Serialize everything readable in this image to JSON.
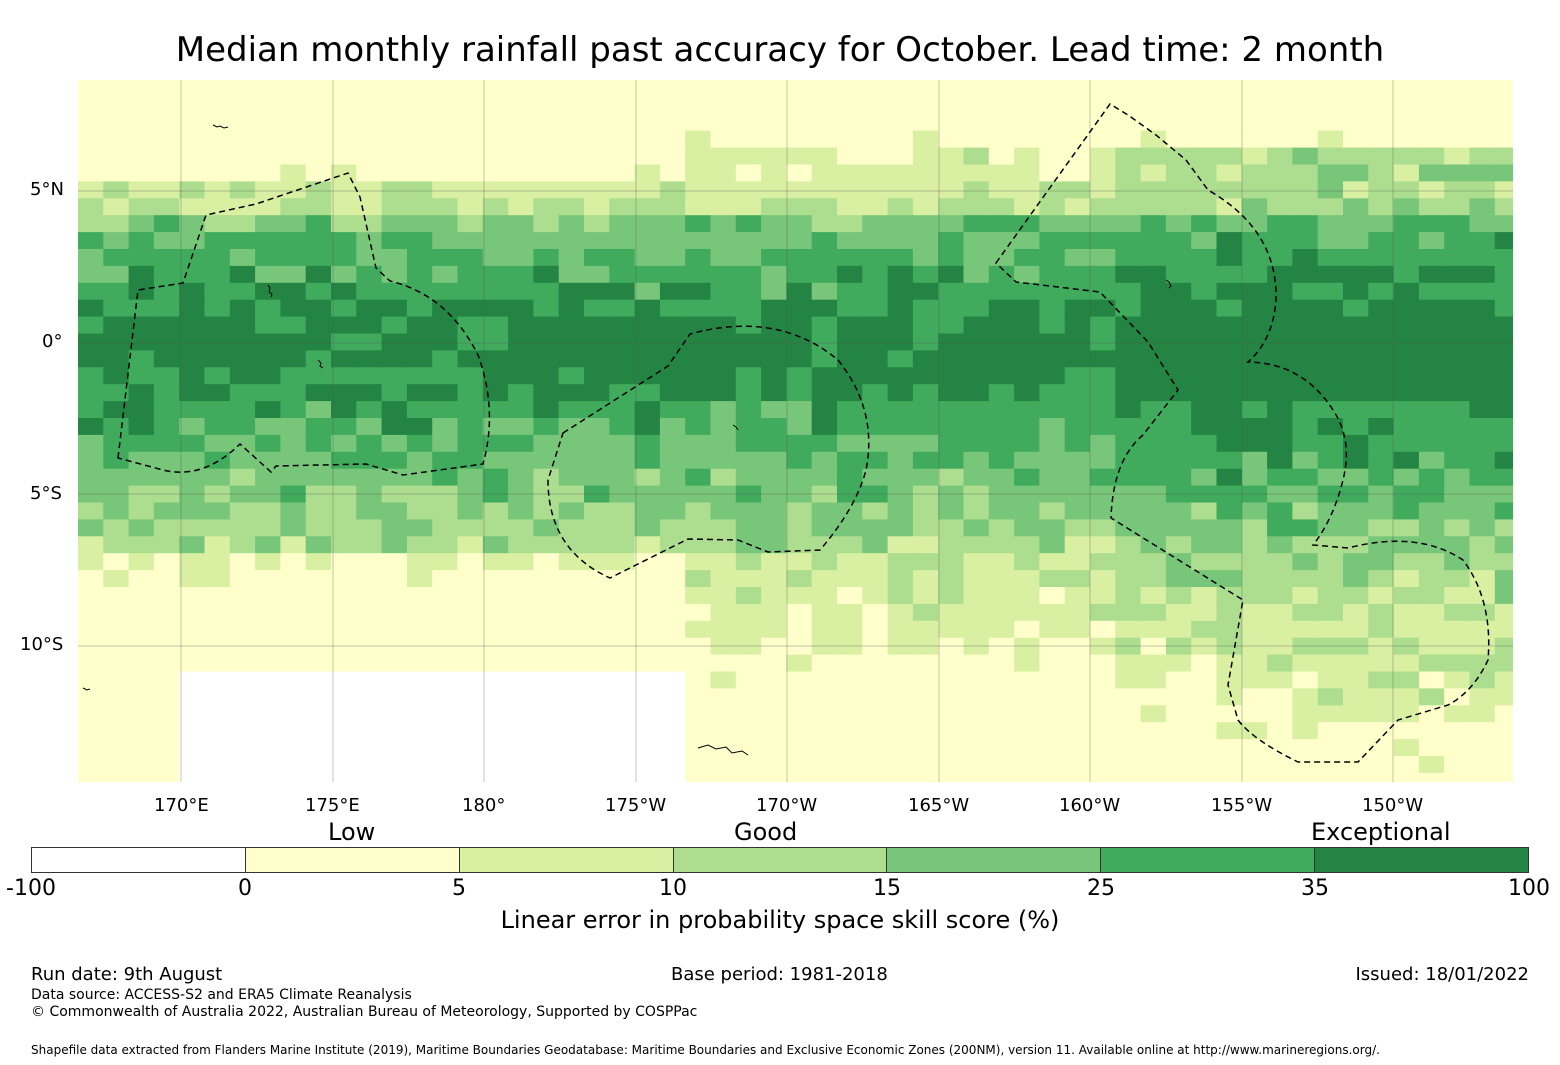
{
  "title": "Median monthly rainfall past accuracy for October. Lead time: 2 month",
  "map": {
    "lat_labels": [
      "5°N",
      "0°",
      "5°S",
      "10°S"
    ],
    "lon_labels": [
      "170°E",
      "175°E",
      "180°",
      "175°W",
      "170°W",
      "165°W",
      "160°W",
      "155°W",
      "150°W"
    ],
    "lon_range": [
      166.6,
      213.9
    ],
    "lat_range": [
      -14.5,
      8.6
    ],
    "outline_color": "#000000",
    "outline_style": "dashed"
  },
  "legend": {
    "category_labels": [
      "Low",
      "Good",
      "Exceptional"
    ],
    "bins": [
      "-100",
      "0",
      "5",
      "10",
      "15",
      "25",
      "35",
      "100"
    ],
    "colors": [
      "#ffffff",
      "#ffffcc",
      "#d9f0a3",
      "#addd8e",
      "#78c679",
      "#41ab5d",
      "#238443"
    ],
    "axis_label": "Linear error in probability space skill score (%)"
  },
  "footer": {
    "run_date": "Run date: 9th August",
    "base_period": "Base period: 1981-2018",
    "issued": "Issued: 18/01/2022",
    "data_source": "Data source: ACCESS-S2 and ERA5 Climate Reanalysis",
    "copyright": "© Commonwealth of Australia 2022, Australian Bureau of Meteorology, Supported by COSPPac",
    "shapefile_note": "Shapefile data extracted from Flanders Marine Institute (2019), Maritime Boundaries Geodatabase: Maritime Boundaries and Exclusive Economic Zones (200NM), version 11. Available online at http://www.marineregions.org/."
  }
}
